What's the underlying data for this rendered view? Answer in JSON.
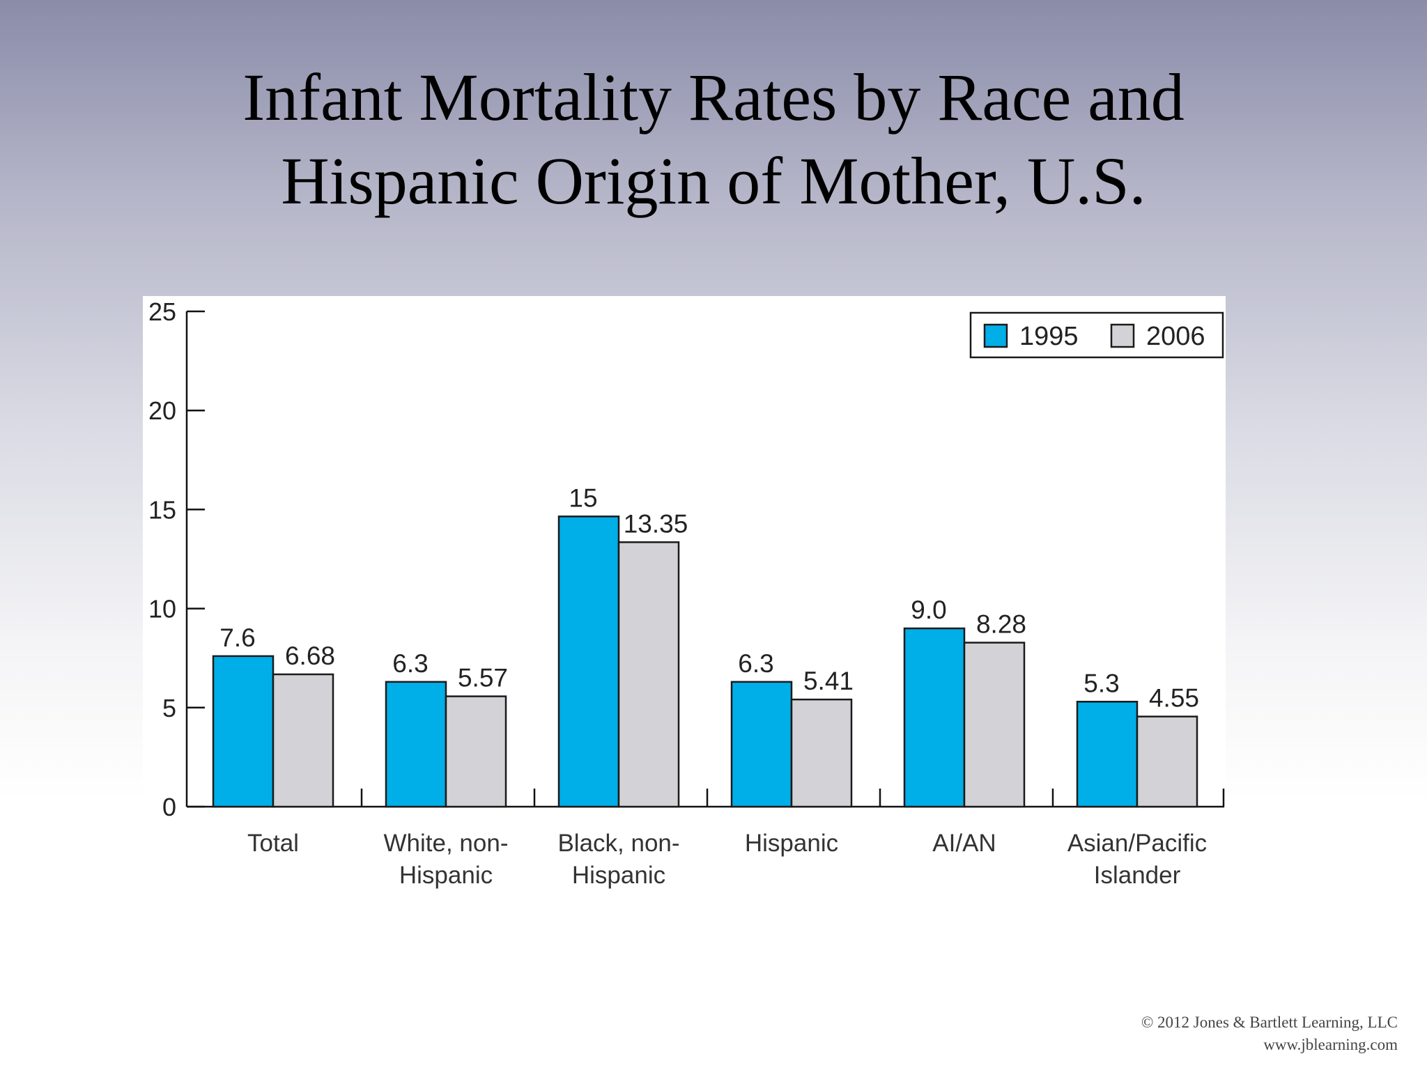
{
  "slide": {
    "title_line1": "Infant Mortality Rates by Race and",
    "title_line2": "Hispanic Origin of Mother, U.S.",
    "copyright_line1": "© 2012 Jones & Bartlett Learning, LLC",
    "copyright_line2": "www.jblearning.com"
  },
  "chart_data": {
    "type": "bar",
    "title": "",
    "xlabel": "",
    "ylabel": "",
    "ylim": [
      0,
      25
    ],
    "yticks": [
      0,
      5,
      10,
      15,
      20,
      25
    ],
    "grid": false,
    "legend_position": "top-right",
    "categories": [
      [
        "Total"
      ],
      [
        "White, non-",
        "Hispanic"
      ],
      [
        "Black, non-",
        "Hispanic"
      ],
      [
        "Hispanic"
      ],
      [
        "AI/AN"
      ],
      [
        "Asian/Pacific",
        "Islander"
      ]
    ],
    "series": [
      {
        "name": "1995",
        "color": "#00aee8",
        "values": [
          7.6,
          6.3,
          14.65,
          6.3,
          9.0,
          5.3
        ],
        "labels": [
          "7.6",
          "6.3",
          "15",
          "6.3",
          "9.0",
          "5.3"
        ]
      },
      {
        "name": "2006",
        "color": "#d3d3d7",
        "values": [
          6.68,
          5.57,
          13.35,
          5.41,
          8.28,
          4.55
        ],
        "labels": [
          "6.68",
          "5.57",
          "13.35",
          "5.41",
          "8.28",
          "4.55"
        ]
      }
    ]
  }
}
